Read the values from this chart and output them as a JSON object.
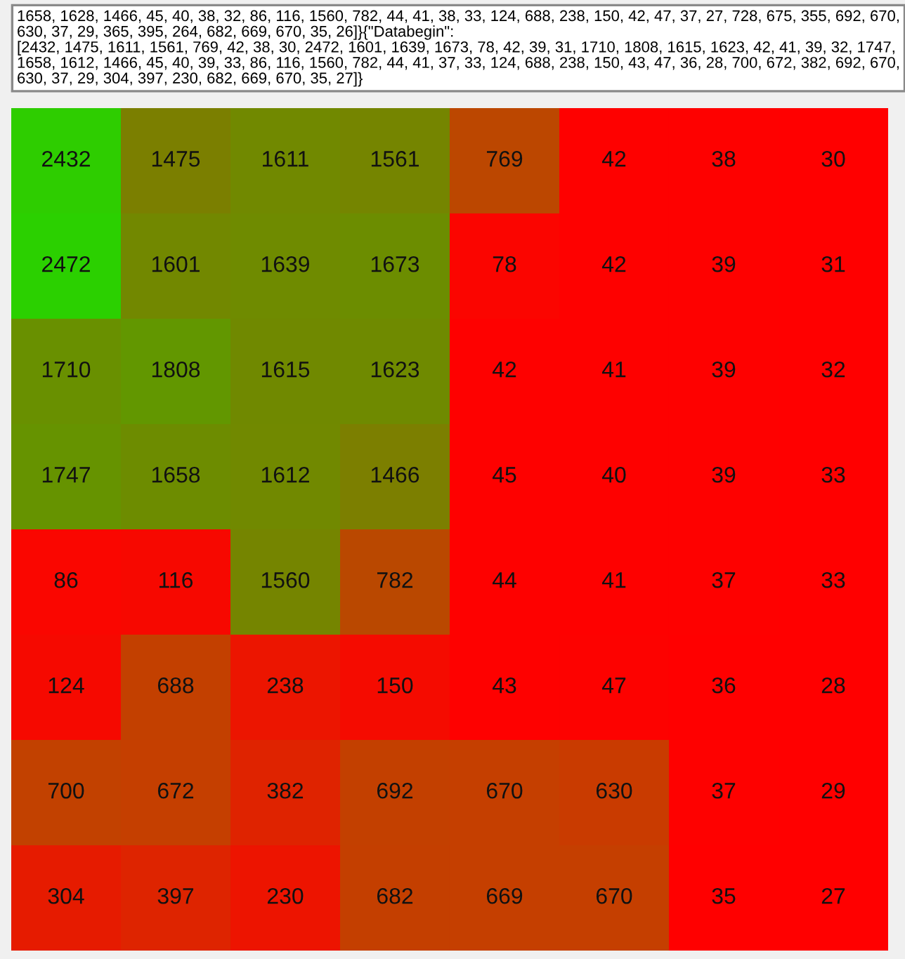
{
  "chart_data": {
    "type": "heatmap",
    "annotations": [
      "1658, 1628, 1466, 45, 40, 38, 32, 86, 116, 1560, 782, 44, 41, 38, 33, 124, 688, 238, 150, 42, 47, 37, 27, 728, 675, 355, 692, 670,\n630, 37, 29, 365, 395, 264, 682, 669, 670, 35, 26]}{\"Databegin\":\n[2432, 1475, 1611, 1561, 769, 42, 38, 30, 2472, 1601, 1639, 1673, 78, 42, 39, 31, 1710, 1808, 1615, 1623, 42, 41, 39, 32, 1747,\n1658, 1612, 1466, 45, 40, 39, 33, 86, 116, 1560, 782, 44, 41, 37, 33, 124, 688, 238, 150, 43, 47, 36, 28, 700, 672, 382, 692, 670,\n630, 37, 29, 304, 397, 230, 682, 669, 670, 35, 27]}"
    ],
    "categories": [
      null,
      null,
      null,
      null,
      null,
      null,
      null,
      null
    ],
    "y_categories": [
      null,
      null,
      null,
      null,
      null,
      null,
      null,
      null
    ],
    "cells": [
      [
        2432,
        1475,
        1611,
        1561,
        769,
        42,
        38,
        30
      ],
      [
        2472,
        1601,
        1639,
        1673,
        78,
        42,
        39,
        31
      ],
      [
        1710,
        1808,
        1615,
        1623,
        42,
        41,
        39,
        32
      ],
      [
        1747,
        1658,
        1612,
        1466,
        45,
        40,
        39,
        33
      ],
      [
        86,
        116,
        1560,
        782,
        44,
        41,
        37,
        33
      ],
      [
        124,
        688,
        238,
        150,
        43,
        47,
        36,
        28
      ],
      [
        700,
        672,
        382,
        692,
        670,
        630,
        37,
        29
      ],
      [
        304,
        397,
        230,
        682,
        669,
        670,
        35,
        27
      ]
    ],
    "colors": [
      "#ff0000",
      "#c83c00",
      "#8c7000",
      "#5e9a00",
      "#2bd000"
    ],
    "data_labels": true,
    "tick_labels": false
  }
}
